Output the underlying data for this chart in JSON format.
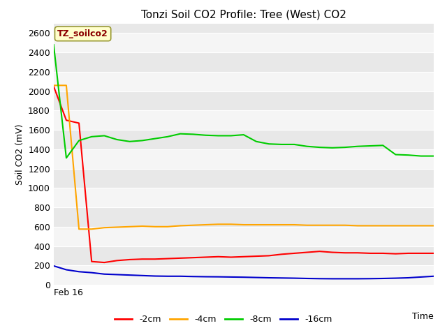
{
  "title": "Tonzi Soil CO2 Profile: Tree (West) CO2",
  "ylabel": "Soil CO2 (mV)",
  "xlabel": "Time",
  "xtick_label": "Feb 16",
  "ylim": [
    0,
    2700
  ],
  "yticks": [
    0,
    200,
    400,
    600,
    800,
    1000,
    1200,
    1400,
    1600,
    1800,
    2000,
    2200,
    2400,
    2600
  ],
  "fig_bg_color": "#ffffff",
  "plot_bg_color": "#e8e8e8",
  "band_color_light": "#f0f0f0",
  "band_color_dark": "#dcdcdc",
  "legend_label": "TZ_soilco2",
  "legend_text_color": "#8b0000",
  "legend_box_facecolor": "#ffffcc",
  "legend_box_edgecolor": "#999933",
  "series": {
    "2cm": {
      "color": "#ff0000",
      "label": "-2cm",
      "data_x": [
        0,
        1,
        2,
        3,
        4,
        5,
        6,
        7,
        8,
        9,
        10,
        11,
        12,
        13,
        14,
        15,
        16,
        17,
        18,
        19,
        20,
        21,
        22,
        23,
        24,
        25,
        26,
        27,
        28,
        29,
        30
      ],
      "data_y": [
        2050,
        1700,
        1670,
        240,
        230,
        250,
        260,
        265,
        265,
        270,
        275,
        280,
        285,
        290,
        285,
        290,
        295,
        300,
        315,
        325,
        335,
        345,
        335,
        330,
        330,
        325,
        325,
        320,
        325,
        325,
        325
      ]
    },
    "4cm": {
      "color": "#ffa500",
      "label": "-4cm",
      "data_x": [
        0,
        1,
        2,
        3,
        4,
        5,
        6,
        7,
        8,
        9,
        10,
        11,
        12,
        13,
        14,
        15,
        16,
        17,
        18,
        19,
        20,
        21,
        22,
        23,
        24,
        25,
        26,
        27,
        28,
        29,
        30
      ],
      "data_y": [
        2060,
        2060,
        575,
        575,
        590,
        595,
        600,
        605,
        600,
        600,
        610,
        615,
        620,
        625,
        625,
        620,
        620,
        620,
        620,
        620,
        615,
        615,
        615,
        615,
        610,
        610,
        610,
        610,
        610,
        610,
        610
      ]
    },
    "8cm": {
      "color": "#00cc00",
      "label": "-8cm",
      "data_x": [
        0,
        1,
        2,
        3,
        4,
        5,
        6,
        7,
        8,
        9,
        10,
        11,
        12,
        13,
        14,
        15,
        16,
        17,
        18,
        19,
        20,
        21,
        22,
        23,
        24,
        25,
        26,
        27,
        28,
        29,
        30
      ],
      "data_y": [
        2480,
        1310,
        1490,
        1530,
        1540,
        1500,
        1480,
        1490,
        1510,
        1530,
        1560,
        1555,
        1545,
        1540,
        1540,
        1550,
        1480,
        1455,
        1450,
        1450,
        1430,
        1420,
        1415,
        1420,
        1430,
        1435,
        1440,
        1345,
        1340,
        1330,
        1330
      ]
    },
    "16cm": {
      "color": "#0000cc",
      "label": "-16cm",
      "data_x": [
        0,
        1,
        2,
        3,
        4,
        5,
        6,
        7,
        8,
        9,
        10,
        11,
        12,
        13,
        14,
        15,
        16,
        17,
        18,
        19,
        20,
        21,
        22,
        23,
        24,
        25,
        26,
        27,
        28,
        29,
        30
      ],
      "data_y": [
        195,
        155,
        135,
        125,
        110,
        105,
        100,
        95,
        90,
        88,
        88,
        85,
        83,
        82,
        80,
        78,
        75,
        72,
        70,
        68,
        65,
        63,
        62,
        62,
        62,
        63,
        65,
        68,
        72,
        80,
        88
      ]
    }
  }
}
